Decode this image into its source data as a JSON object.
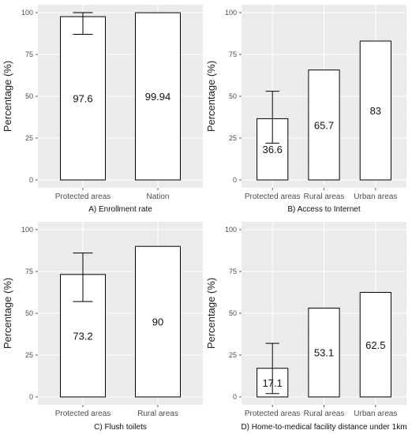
{
  "chart_data": [
    {
      "type": "bar",
      "caption": "A) Enrollment rate",
      "ylabel": "Percentage (%)",
      "ylim": [
        0,
        100
      ],
      "yticks": [
        0,
        25,
        50,
        75,
        100
      ],
      "categories": [
        "Protected areas",
        "Nation"
      ],
      "values": [
        97.6,
        99.94
      ],
      "value_labels": [
        "97.6",
        "99.94"
      ],
      "error_bars": [
        {
          "low": 87,
          "high": 100
        },
        null
      ],
      "grid": true,
      "panel_color": "#ebebeb",
      "bar_fill": "#ffffff",
      "bar_stroke": "#000000"
    },
    {
      "type": "bar",
      "caption": "B) Access to Internet",
      "ylabel": "Percentage (%)",
      "ylim": [
        0,
        100
      ],
      "yticks": [
        0,
        25,
        50,
        75,
        100
      ],
      "categories": [
        "Protected areas",
        "Rural areas",
        "Urban areas"
      ],
      "values": [
        36.6,
        65.7,
        83
      ],
      "value_labels": [
        "36.6",
        "65.7",
        "83"
      ],
      "error_bars": [
        {
          "low": 22,
          "high": 53
        },
        null,
        null
      ],
      "grid": true,
      "panel_color": "#ebebeb",
      "bar_fill": "#ffffff",
      "bar_stroke": "#000000"
    },
    {
      "type": "bar",
      "caption": "C) Flush toilets",
      "ylabel": "Percentage (%)",
      "ylim": [
        0,
        100
      ],
      "yticks": [
        0,
        25,
        50,
        75,
        100
      ],
      "categories": [
        "Protected areas",
        "Rural areas"
      ],
      "values": [
        73.2,
        90
      ],
      "value_labels": [
        "73.2",
        "90"
      ],
      "error_bars": [
        {
          "low": 57,
          "high": 86
        },
        null
      ],
      "grid": true,
      "panel_color": "#ebebeb",
      "bar_fill": "#ffffff",
      "bar_stroke": "#000000"
    },
    {
      "type": "bar",
      "caption": "D) Home-to-medical facility distance under 1km",
      "ylabel": "Percentage (%)",
      "ylim": [
        0,
        100
      ],
      "yticks": [
        0,
        25,
        50,
        75,
        100
      ],
      "categories": [
        "Protected areas",
        "Rural areas",
        "Urban areas"
      ],
      "values": [
        17.1,
        53.1,
        62.5
      ],
      "value_labels": [
        "17.1",
        "53.1",
        "62.5"
      ],
      "error_bars": [
        {
          "low": 2,
          "high": 32
        },
        null,
        null
      ],
      "grid": true,
      "panel_color": "#ebebeb",
      "bar_fill": "#ffffff",
      "bar_stroke": "#000000"
    }
  ]
}
